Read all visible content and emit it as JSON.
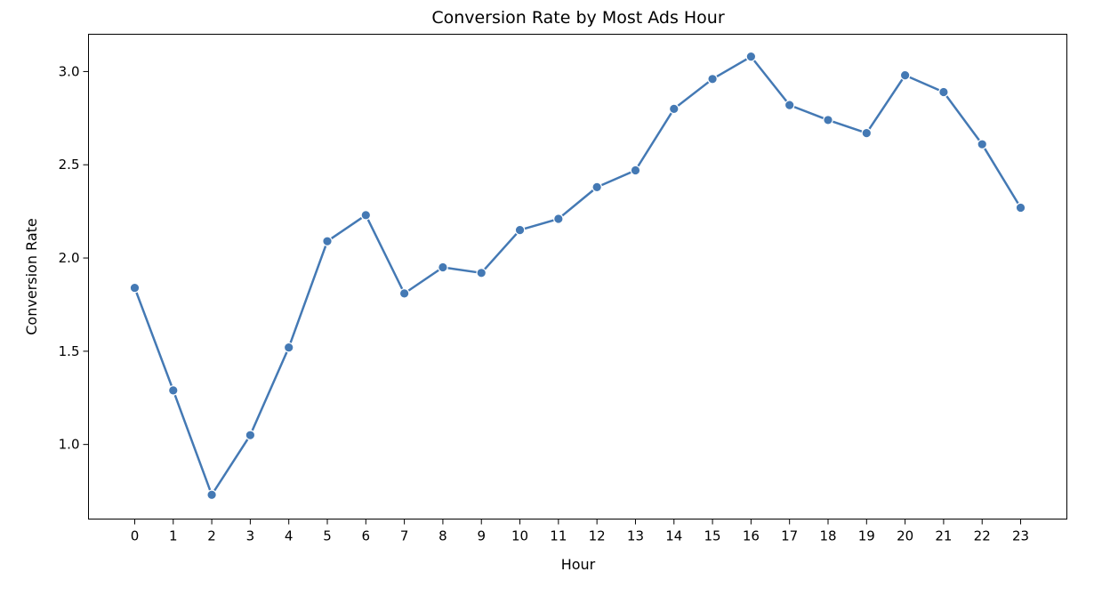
{
  "chart_data": {
    "type": "line",
    "title": "Conversion Rate by Most Ads Hour",
    "xlabel": "Hour",
    "ylabel": "Conversion Rate",
    "x": [
      0,
      1,
      2,
      3,
      4,
      5,
      6,
      7,
      8,
      9,
      10,
      11,
      12,
      13,
      14,
      15,
      16,
      17,
      18,
      19,
      20,
      21,
      22,
      23
    ],
    "x_tick_labels": [
      "0",
      "1",
      "2",
      "3",
      "4",
      "5",
      "6",
      "7",
      "8",
      "9",
      "10",
      "11",
      "12",
      "13",
      "14",
      "15",
      "16",
      "17",
      "18",
      "19",
      "20",
      "21",
      "22",
      "23"
    ],
    "series": [
      {
        "values": [
          1.84,
          1.29,
          0.73,
          1.05,
          1.52,
          2.09,
          2.23,
          1.81,
          1.95,
          1.92,
          2.15,
          2.21,
          2.38,
          2.47,
          2.8,
          2.96,
          3.08,
          2.82,
          2.74,
          2.67,
          2.98,
          2.89,
          2.61,
          2.27
        ],
        "color": "#4479b4"
      }
    ],
    "xlim": [
      -1.2,
      24.2
    ],
    "ylim": [
      0.6,
      3.2
    ],
    "y_ticks": [
      1.0,
      1.5,
      2.0,
      2.5,
      3.0
    ],
    "y_tick_labels": [
      "1.0",
      "1.5",
      "2.0",
      "2.5",
      "3.0"
    ],
    "grid": false,
    "marker": "circle"
  }
}
